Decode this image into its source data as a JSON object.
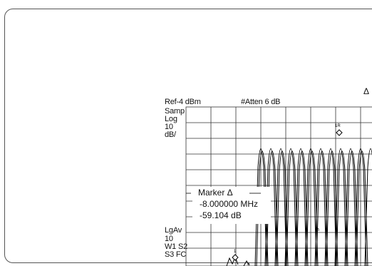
{
  "delta_symbol": "Δ",
  "header": {
    "ref_level": "Ref-4 dBm",
    "attenuation": "#Atten 6 dB"
  },
  "left_panel": {
    "detector": "Samp",
    "scale_type": "Log",
    "scale_value": "10",
    "scale_unit": "dB/",
    "avg_type": "LgAv",
    "avg_value": "10",
    "window1": "W1 S2",
    "window2": "S3 FC"
  },
  "marker": {
    "title": "Marker Δ",
    "frequency": "-8.000000 MHz",
    "amplitude": "-59.104 dB",
    "label_1r": "1R",
    "label_1": "1"
  }
}
